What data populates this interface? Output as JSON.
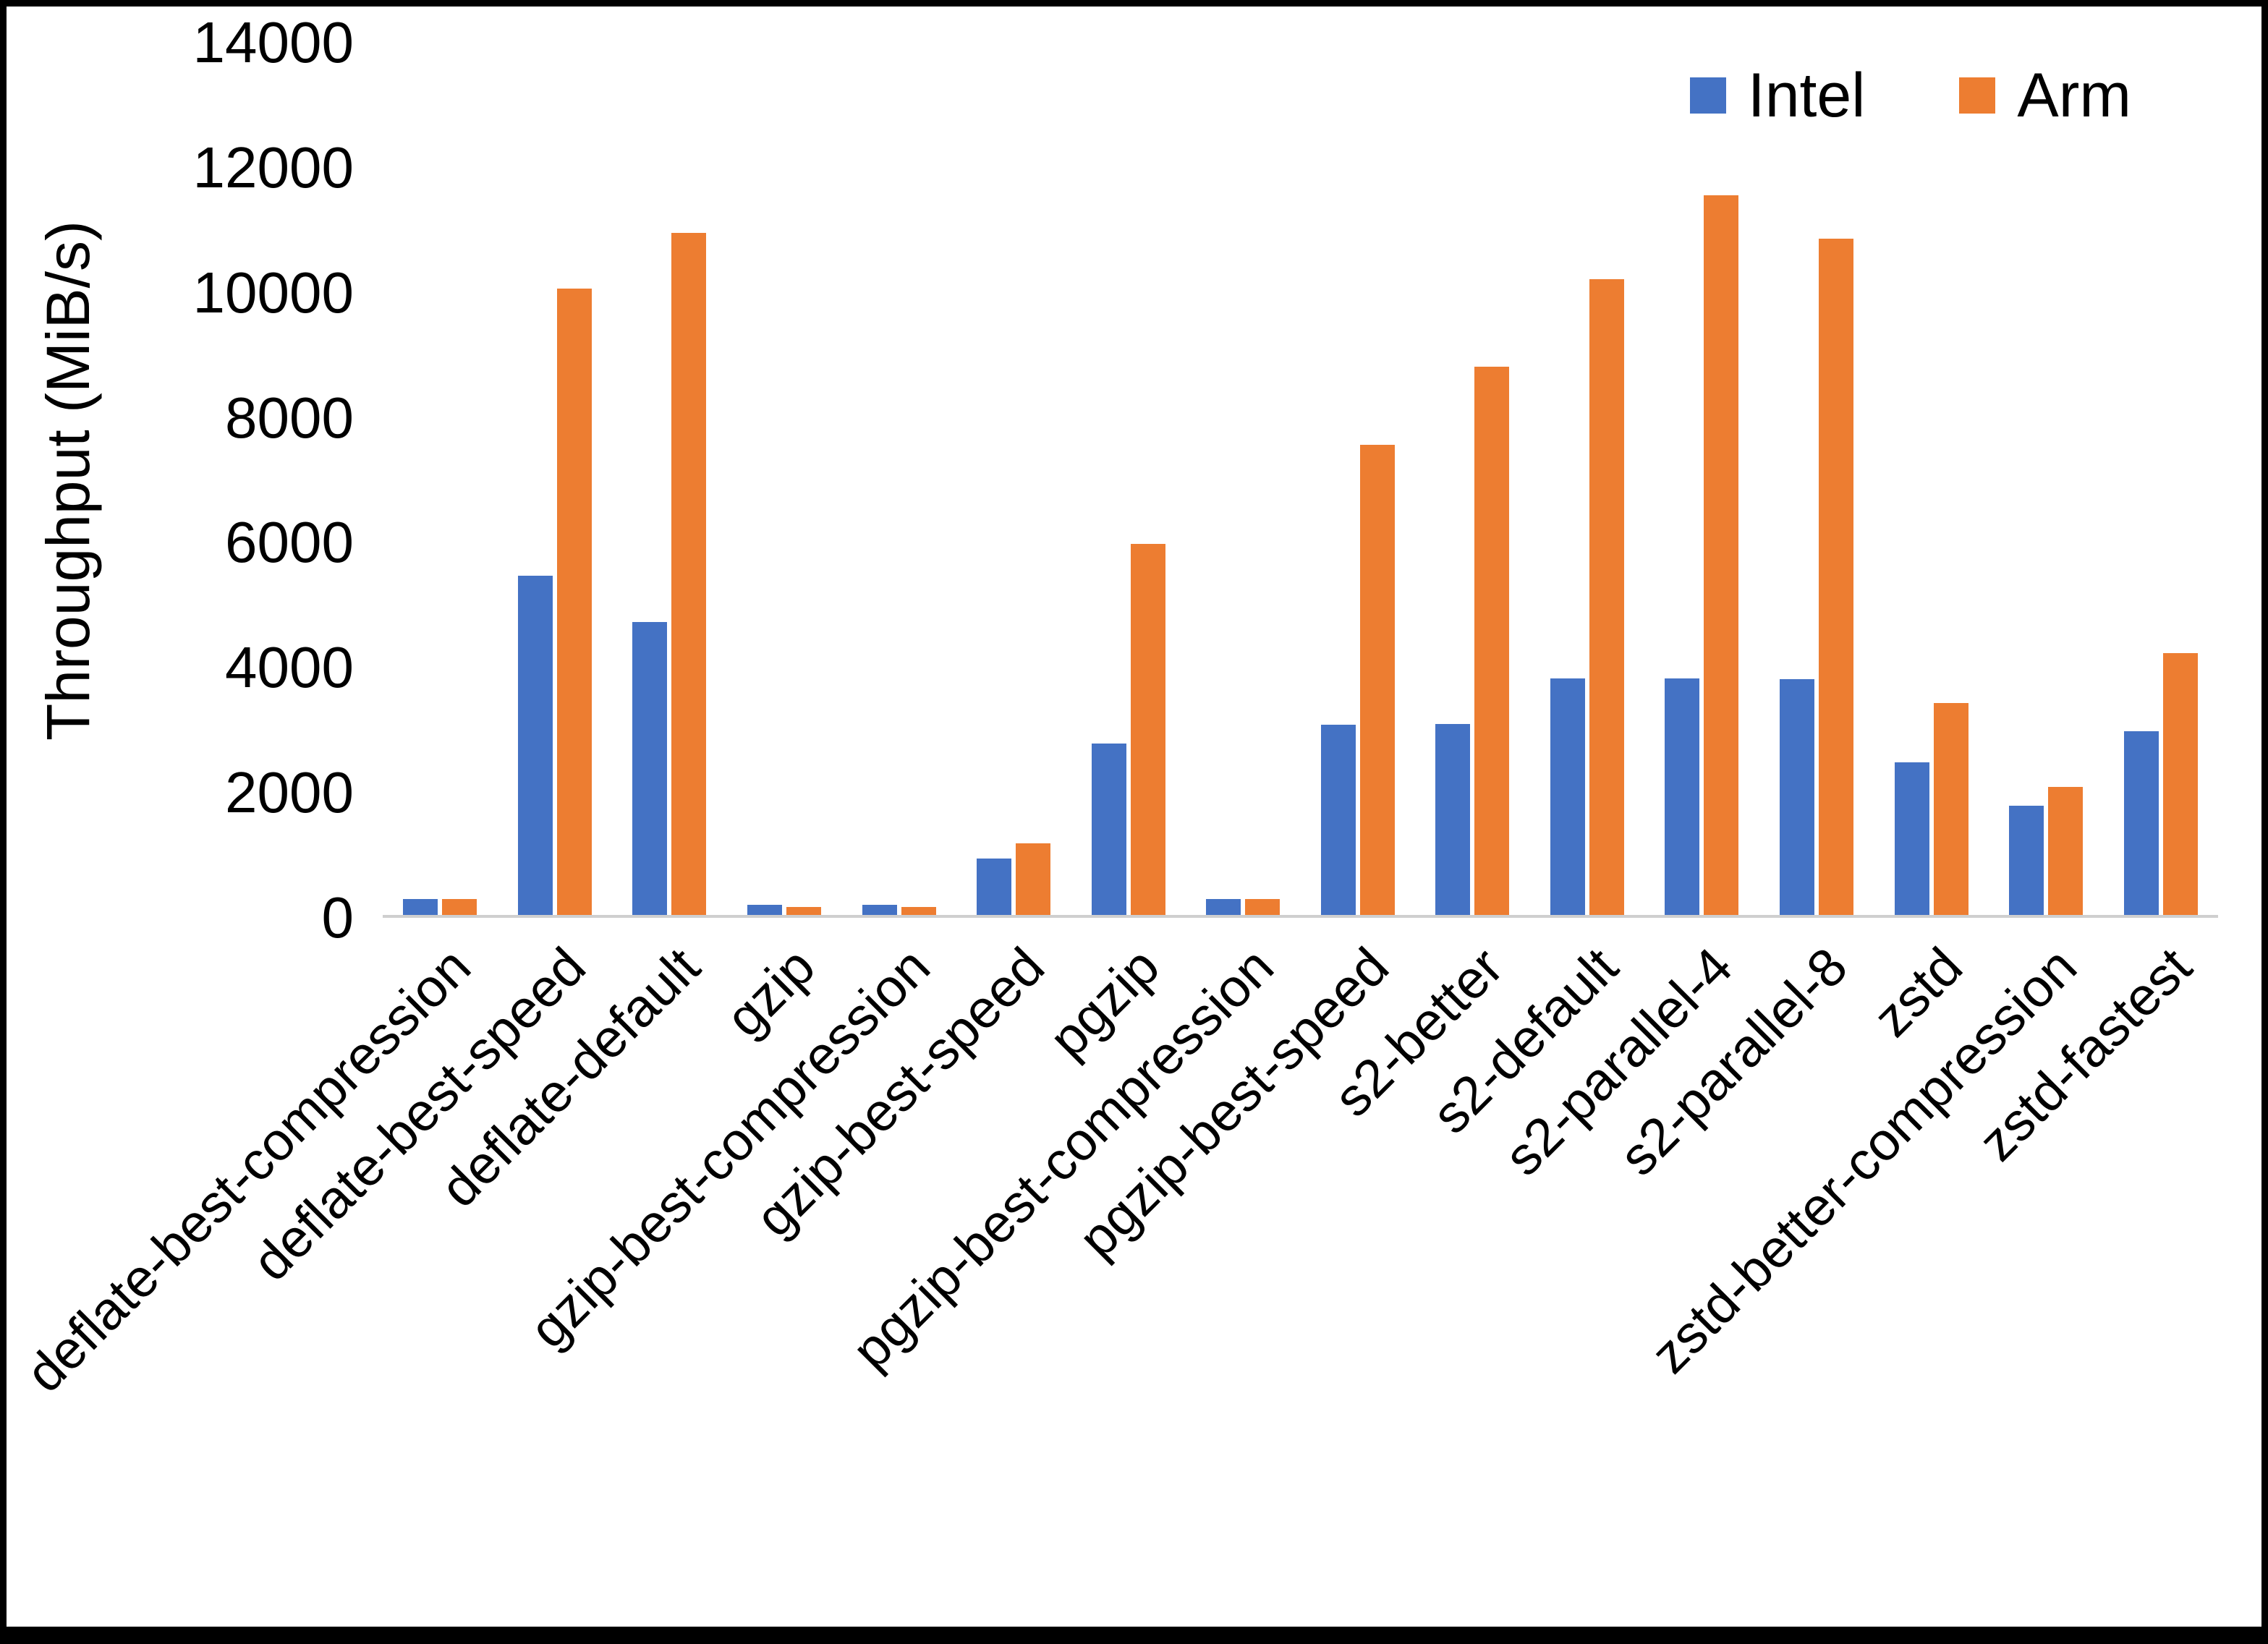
{
  "chart_data": {
    "type": "bar",
    "title": "",
    "xlabel": "",
    "ylabel": "Throughput (MiB/s)",
    "ylim": [
      0,
      14000
    ],
    "yticks": [
      0,
      2000,
      4000,
      6000,
      8000,
      10000,
      12000,
      14000
    ],
    "grid": false,
    "legend_position": "top-right",
    "axis_line_color": "#cfcfcf",
    "categories": [
      "deflate-best-compression",
      "deflate-best-speed",
      "deflate-default",
      "gzip",
      "gzip-best-compression",
      "gzip-best-speed",
      "pgzip",
      "pgzip-best-compression",
      "pgzip-best-speed",
      "s2-better",
      "s2-default",
      "s2-parallel-4",
      "s2-parallel-8",
      "zstd",
      "zstd-better-compression",
      "zstd-fastest"
    ],
    "series": [
      {
        "name": "Intel",
        "color": "#4472C4",
        "values": [
          250,
          5450,
          4700,
          160,
          160,
          900,
          2750,
          250,
          3050,
          3060,
          3800,
          3800,
          3790,
          2450,
          1750,
          2950
        ]
      },
      {
        "name": "Arm",
        "color": "#ED7D31",
        "values": [
          250,
          10050,
          10950,
          130,
          130,
          1150,
          5950,
          260,
          7550,
          8800,
          10200,
          11550,
          10850,
          3400,
          2050,
          4200
        ]
      }
    ]
  }
}
